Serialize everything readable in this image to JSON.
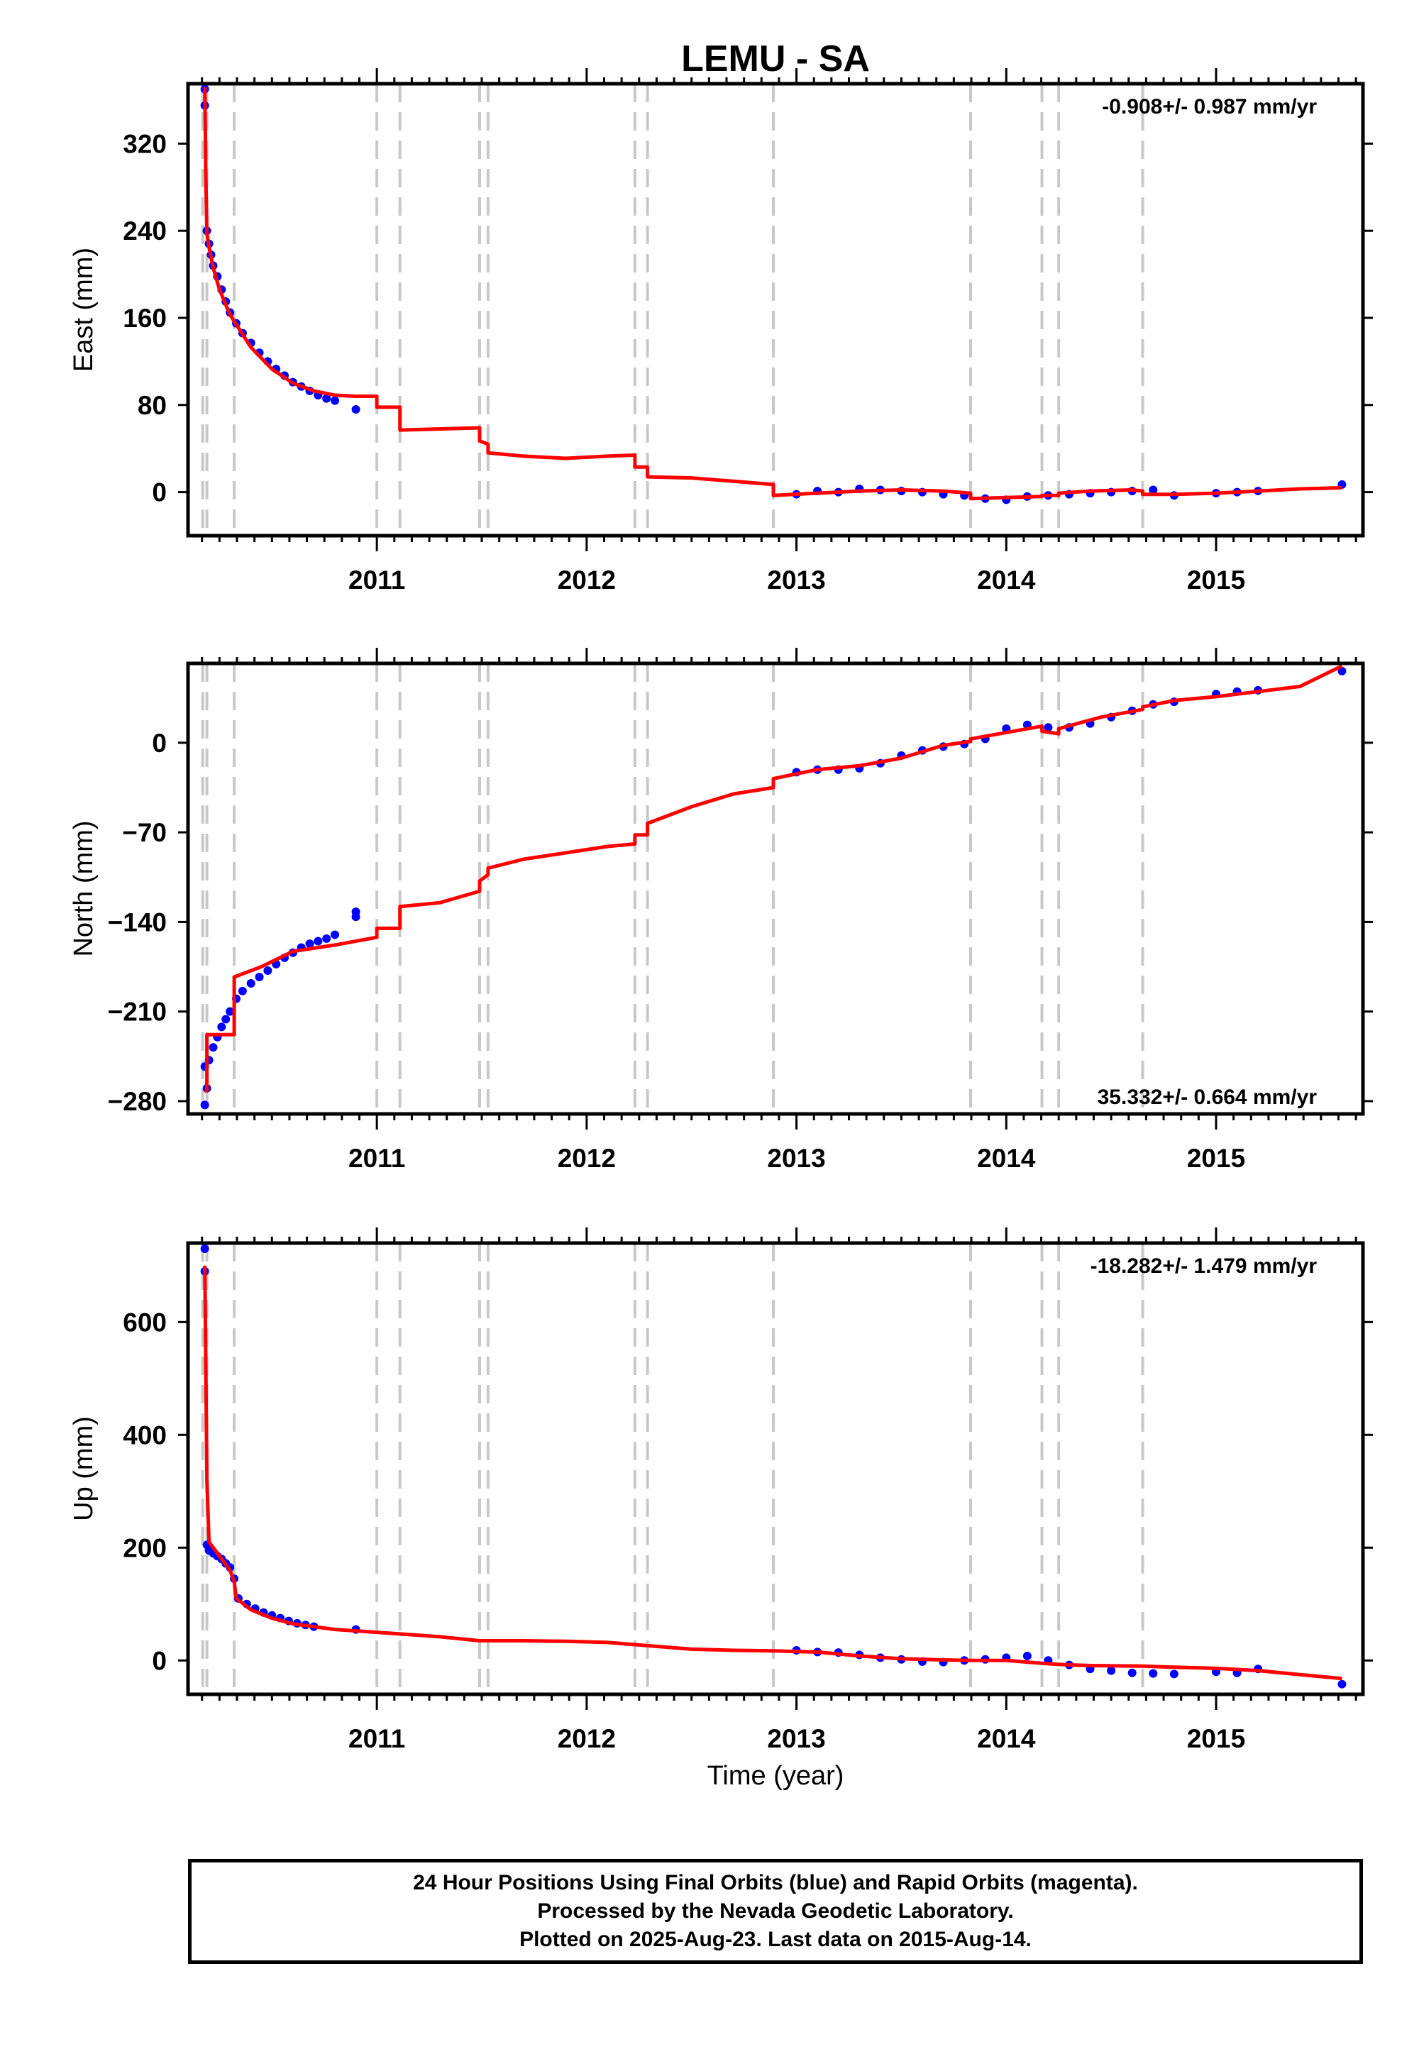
{
  "chart_data": {
    "title": "LEMU - SA",
    "xlabel": "Time (year)",
    "x_ticks": [
      "2011",
      "2012",
      "2013",
      "2014",
      "2015"
    ],
    "xlim": [
      2010.1,
      2015.7
    ],
    "grid": false,
    "colors": {
      "observed": "#0000ff",
      "model": "#ff0000",
      "offsets": "#c8c8c8",
      "frame": "#000000"
    },
    "offset_epochs": [
      2010.17,
      2010.19,
      2010.32,
      2011.0,
      2011.11,
      2011.49,
      2011.53,
      2012.23,
      2012.29,
      2012.89,
      2013.83,
      2014.17,
      2014.25,
      2014.65
    ],
    "panels": [
      {
        "component": "East",
        "ylabel": "East (mm)",
        "ylim": [
          -40,
          375
        ],
        "yticks": [
          0,
          80,
          160,
          240,
          320
        ],
        "yticks_text": [
          "0",
          "80",
          "160",
          "240",
          "320"
        ],
        "rate_text": "-0.908+/- 0.987 mm/yr",
        "rate_position": "top-right",
        "observed": {
          "type": "scatter",
          "x": [
            2010.18,
            2010.18,
            2010.19,
            2010.2,
            2010.21,
            2010.22,
            2010.24,
            2010.26,
            2010.28,
            2010.3,
            2010.33,
            2010.36,
            2010.4,
            2010.44,
            2010.48,
            2010.52,
            2010.56,
            2010.6,
            2010.64,
            2010.68,
            2010.72,
            2010.76,
            2010.8,
            2010.9,
            2013.0,
            2013.1,
            2013.2,
            2013.3,
            2013.4,
            2013.5,
            2013.6,
            2013.7,
            2013.8,
            2013.9,
            2014.0,
            2014.1,
            2014.2,
            2014.3,
            2014.4,
            2014.5,
            2014.6,
            2014.7,
            2014.8,
            2015.0,
            2015.1,
            2015.2,
            2015.6
          ],
          "y": [
            370,
            355,
            240,
            228,
            218,
            208,
            198,
            186,
            175,
            165,
            155,
            146,
            137,
            128,
            120,
            113,
            107,
            101,
            97,
            93,
            89,
            86,
            84,
            76,
            -2,
            1,
            0,
            3,
            2,
            1,
            0,
            -2,
            -3,
            -6,
            -7,
            -4,
            -3,
            -2,
            -1,
            0,
            1,
            2,
            -3,
            -1,
            0,
            1,
            7
          ]
        },
        "model": {
          "type": "line",
          "x": [
            2010.18,
            2010.185,
            2010.19,
            2010.2,
            2010.22,
            2010.25,
            2010.3,
            2010.4,
            2010.5,
            2010.6,
            2010.7,
            2010.8,
            2010.9,
            2011.0,
            2011.0,
            2011.11,
            2011.11,
            2011.49,
            2011.49,
            2011.53,
            2011.53,
            2011.7,
            2011.9,
            2012.1,
            2012.23,
            2012.23,
            2012.29,
            2012.29,
            2012.5,
            2012.7,
            2012.89,
            2012.89,
            2013.1,
            2013.3,
            2013.5,
            2013.7,
            2013.83,
            2013.83,
            2014.0,
            2014.17,
            2014.17,
            2014.25,
            2014.25,
            2014.4,
            2014.6,
            2014.65,
            2014.65,
            2014.8,
            2015.0,
            2015.2,
            2015.4,
            2015.6
          ],
          "y": [
            372,
            290,
            238,
            225,
            206,
            186,
            163,
            133,
            113,
            100,
            93,
            89,
            88,
            88,
            78,
            78,
            57,
            59,
            47,
            44,
            36,
            33,
            31,
            33,
            34,
            23,
            23,
            14,
            13,
            10,
            7,
            -3,
            -1,
            1,
            2,
            1,
            -1,
            -6,
            -5,
            -4,
            -3,
            -3,
            -1,
            1,
            2,
            1,
            -2,
            -2,
            -1,
            1,
            3,
            4
          ]
        }
      },
      {
        "component": "North",
        "ylabel": "North (mm)",
        "ylim": [
          -290,
          62
        ],
        "yticks": [
          -280,
          -210,
          -140,
          -70,
          0
        ],
        "yticks_text": [
          "−280",
          "−210",
          "−140",
          "−70",
          "0"
        ],
        "rate_text": "35.332+/- 0.664 mm/yr",
        "rate_position": "bottom-right",
        "observed": {
          "type": "scatter",
          "x": [
            2010.18,
            2010.18,
            2010.19,
            2010.2,
            2010.22,
            2010.24,
            2010.26,
            2010.28,
            2010.3,
            2010.33,
            2010.36,
            2010.4,
            2010.44,
            2010.48,
            2010.52,
            2010.56,
            2010.6,
            2010.64,
            2010.68,
            2010.72,
            2010.76,
            2010.8,
            2010.9,
            2010.9,
            2013.0,
            2013.1,
            2013.2,
            2013.3,
            2013.4,
            2013.5,
            2013.6,
            2013.7,
            2013.8,
            2013.9,
            2014.0,
            2014.1,
            2014.2,
            2014.3,
            2014.4,
            2014.5,
            2014.6,
            2014.7,
            2014.8,
            2015.0,
            2015.1,
            2015.2,
            2015.6
          ],
          "y": [
            -253,
            -283,
            -270,
            -248,
            -238,
            -230,
            -222,
            -216,
            -210,
            -200,
            -194,
            -188,
            -183,
            -178,
            -173,
            -168,
            -164,
            -160,
            -157,
            -155,
            -153,
            -150,
            -132,
            -136,
            -23,
            -21,
            -21,
            -20,
            -16,
            -10,
            -6,
            -3,
            -1,
            3,
            11,
            14,
            12,
            12,
            15,
            20,
            25,
            30,
            32,
            38,
            40,
            41,
            56
          ]
        },
        "model": {
          "type": "line",
          "x": [
            2010.18,
            2010.19,
            2010.19,
            2010.32,
            2010.32,
            2010.45,
            2010.6,
            2010.8,
            2011.0,
            2011.0,
            2011.11,
            2011.11,
            2011.3,
            2011.49,
            2011.49,
            2011.53,
            2011.53,
            2011.7,
            2011.9,
            2012.1,
            2012.23,
            2012.23,
            2012.29,
            2012.29,
            2012.5,
            2012.7,
            2012.89,
            2012.89,
            2013.1,
            2013.3,
            2013.5,
            2013.7,
            2013.83,
            2013.83,
            2014.0,
            2014.17,
            2014.17,
            2014.25,
            2014.25,
            2014.45,
            2014.65,
            2014.65,
            2014.8,
            2015.0,
            2015.2,
            2015.4,
            2015.6
          ],
          "y": [
            -272,
            -272,
            -228,
            -228,
            -183,
            -175,
            -163,
            -158,
            -152,
            -145,
            -145,
            -128,
            -125,
            -116,
            -108,
            -103,
            -98,
            -91,
            -86,
            -81,
            -79,
            -72,
            -72,
            -63,
            -50,
            -40,
            -35,
            -28,
            -21,
            -18,
            -12,
            -2,
            1,
            3,
            8,
            13,
            9,
            7,
            11,
            20,
            26,
            28,
            33,
            36,
            40,
            44,
            60
          ]
        }
      },
      {
        "component": "Up",
        "ylabel": "Up (mm)",
        "ylim": [
          -60,
          740
        ],
        "yticks": [
          0,
          200,
          400,
          600
        ],
        "yticks_text": [
          "0",
          "200",
          "400",
          "600"
        ],
        "rate_text": "-18.282+/- 1.479 mm/yr",
        "rate_position": "top-right",
        "observed": {
          "type": "scatter",
          "x": [
            2010.18,
            2010.18,
            2010.19,
            2010.2,
            2010.22,
            2010.24,
            2010.26,
            2010.28,
            2010.3,
            2010.32,
            2010.34,
            2010.38,
            2010.42,
            2010.46,
            2010.5,
            2010.54,
            2010.58,
            2010.62,
            2010.66,
            2010.7,
            2010.9,
            2013.0,
            2013.1,
            2013.2,
            2013.3,
            2013.4,
            2013.5,
            2013.6,
            2013.7,
            2013.8,
            2013.9,
            2014.0,
            2014.1,
            2014.2,
            2014.3,
            2014.4,
            2014.5,
            2014.6,
            2014.7,
            2014.8,
            2015.0,
            2015.1,
            2015.2,
            2015.6
          ],
          "y": [
            730,
            690,
            205,
            195,
            190,
            185,
            180,
            172,
            165,
            145,
            110,
            100,
            92,
            85,
            80,
            75,
            70,
            66,
            63,
            60,
            55,
            18,
            15,
            14,
            10,
            5,
            2,
            -2,
            -3,
            0,
            2,
            5,
            8,
            0,
            -8,
            -15,
            -18,
            -22,
            -23,
            -24,
            -20,
            -22,
            -15,
            -42
          ]
        },
        "model": {
          "type": "line",
          "x": [
            2010.18,
            2010.185,
            2010.19,
            2010.2,
            2010.25,
            2010.3,
            2010.32,
            2010.33,
            2010.4,
            2010.5,
            2010.6,
            2010.8,
            2011.0,
            2011.11,
            2011.3,
            2011.49,
            2011.7,
            2011.9,
            2012.1,
            2012.3,
            2012.5,
            2012.7,
            2012.89,
            2013.1,
            2013.3,
            2013.5,
            2013.7,
            2013.83,
            2014.0,
            2014.17,
            2014.25,
            2014.4,
            2014.65,
            2014.8,
            2015.0,
            2015.2,
            2015.4,
            2015.6
          ],
          "y": [
            700,
            520,
            320,
            210,
            185,
            160,
            140,
            110,
            90,
            75,
            65,
            55,
            50,
            47,
            42,
            35,
            35,
            34,
            32,
            26,
            20,
            18,
            17,
            15,
            8,
            3,
            1,
            0,
            0,
            -5,
            -7,
            -9,
            -10,
            -12,
            -14,
            -18,
            -25,
            -32
          ]
        }
      }
    ]
  },
  "footer": {
    "line1": "24 Hour Positions Using Final Orbits (blue) and Rapid Orbits (magenta).",
    "line2": "Processed by the Nevada Geodetic Laboratory.",
    "line3": "Plotted on 2025-Aug-23. Last data on 2015-Aug-14."
  }
}
